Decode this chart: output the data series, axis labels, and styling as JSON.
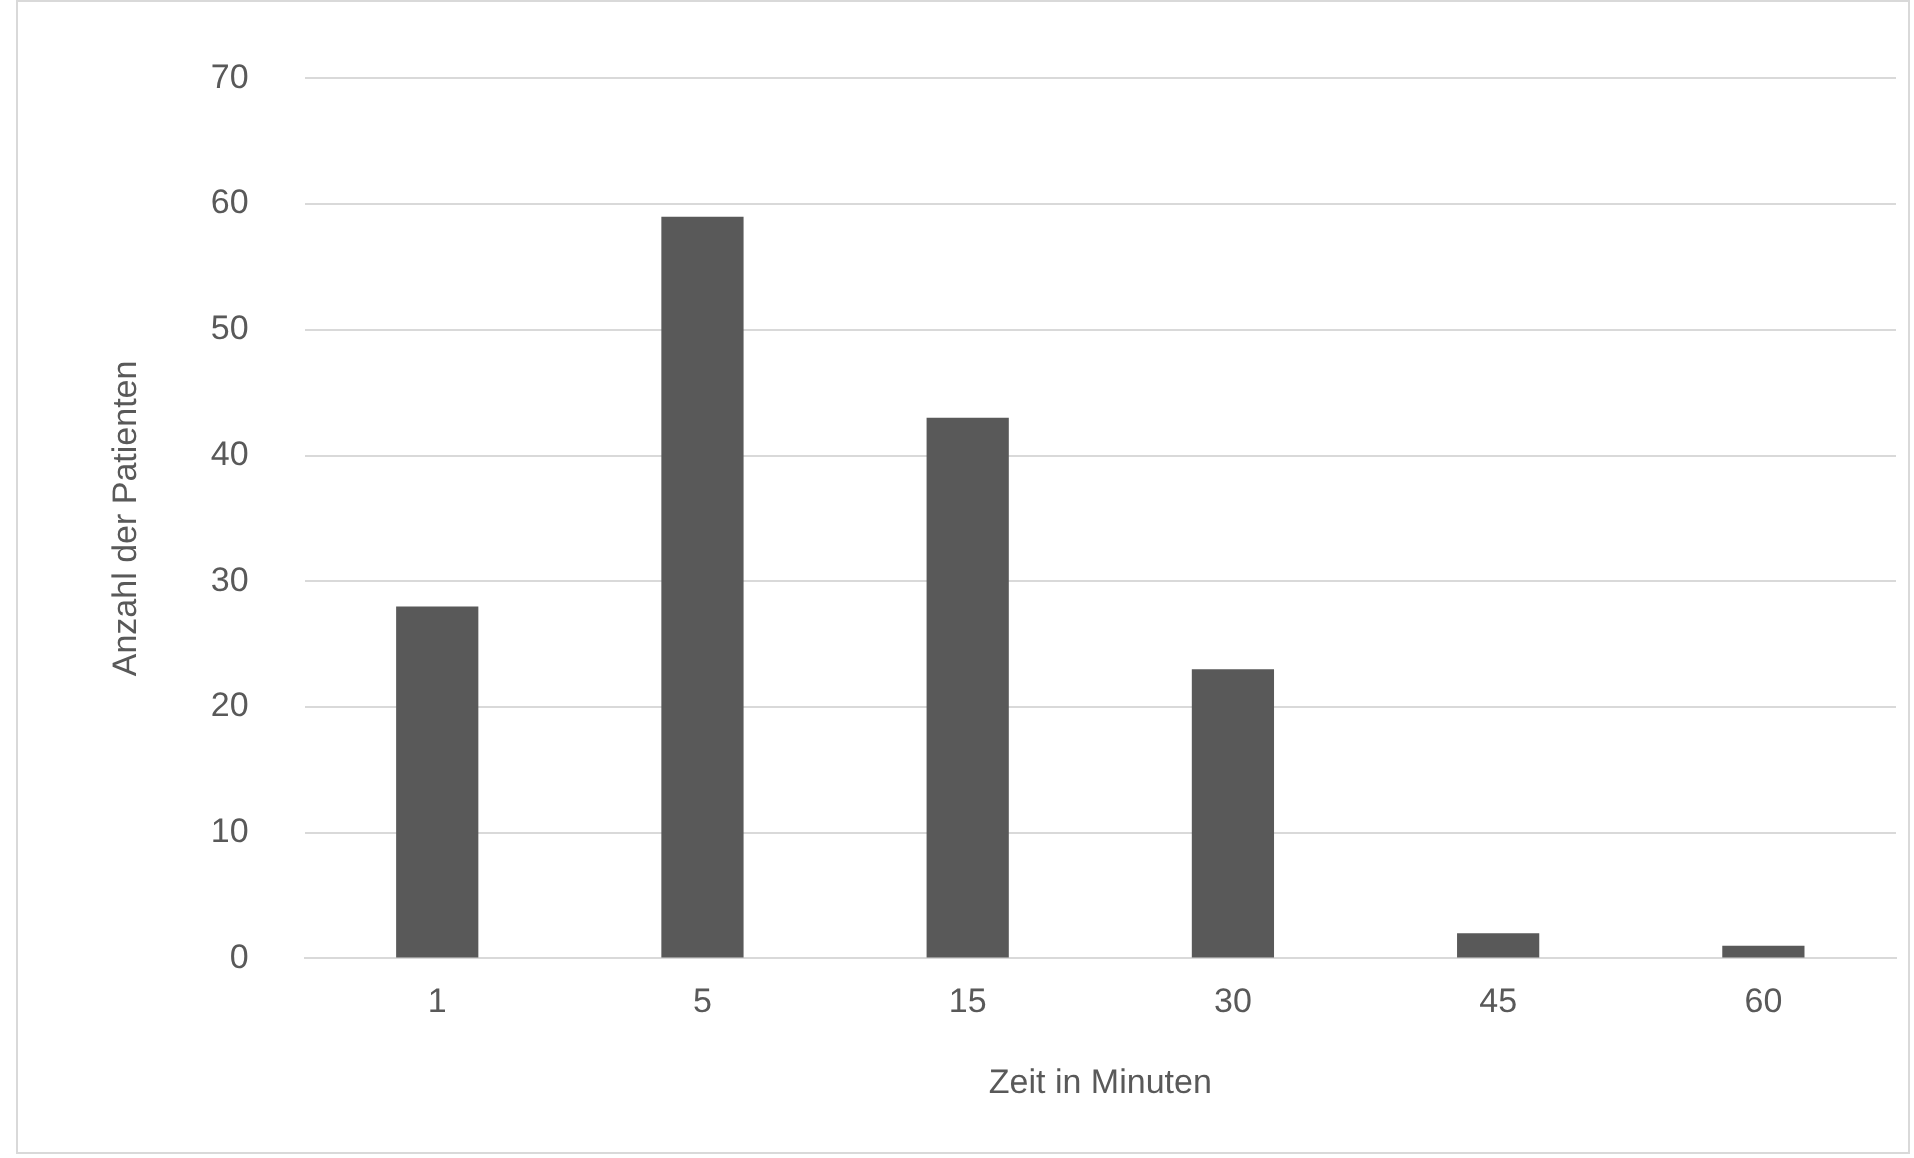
{
  "chart_data": {
    "type": "bar",
    "xlabel": "Zeit in Minuten",
    "ylabel": "Anzahl der Patienten",
    "categories": [
      "1",
      "5",
      "15",
      "30",
      "45",
      "60"
    ],
    "values": [
      28,
      59,
      43,
      23,
      2,
      1
    ],
    "color": "#595959",
    "ylim": [
      0,
      70
    ],
    "yticks": [
      0,
      10,
      20,
      30,
      40,
      50,
      60,
      70
    ],
    "grid": "y",
    "legend": false
  }
}
